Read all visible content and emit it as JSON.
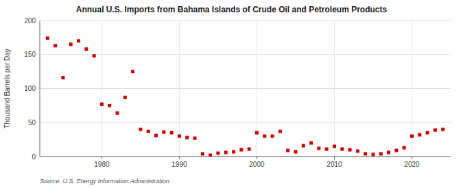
{
  "chart_data": {
    "type": "scatter",
    "title": "Annual U.S. Imports from Bahama Islands of Crude Oil and Petroleum Products",
    "y_label": "Thousand Barrels per Day",
    "source": "Source: U.S. Energy Information Administration",
    "x": [
      1973,
      1974,
      1975,
      1976,
      1977,
      1978,
      1979,
      1980,
      1981,
      1982,
      1983,
      1984,
      1985,
      1986,
      1987,
      1988,
      1989,
      1990,
      1991,
      1992,
      1993,
      1994,
      1995,
      1996,
      1997,
      1998,
      1999,
      2000,
      2001,
      2002,
      2003,
      2004,
      2005,
      2006,
      2007,
      2008,
      2009,
      2010,
      2011,
      2012,
      2013,
      2014,
      2015,
      2016,
      2017,
      2018,
      2019,
      2020,
      2021,
      2022,
      2023,
      2024
    ],
    "values": [
      174,
      163,
      116,
      165,
      170,
      158,
      148,
      77,
      75,
      64,
      87,
      125,
      40,
      37,
      31,
      36,
      35,
      30,
      28,
      27,
      4,
      2,
      5,
      6,
      7,
      10,
      11,
      35,
      30,
      30,
      37,
      9,
      7,
      16,
      20,
      12,
      11,
      15,
      11,
      10,
      8,
      4,
      3,
      4,
      6,
      9,
      13,
      30,
      32,
      35,
      39,
      40
    ],
    "color": "#cc0000",
    "marker": "square",
    "xlim": [
      1972,
      2025
    ],
    "ylim": [
      0,
      200
    ],
    "xticks": [
      1980,
      1990,
      2000,
      2010,
      2020
    ],
    "yticks": [
      0,
      50,
      100,
      150,
      200
    ],
    "grid": true
  }
}
